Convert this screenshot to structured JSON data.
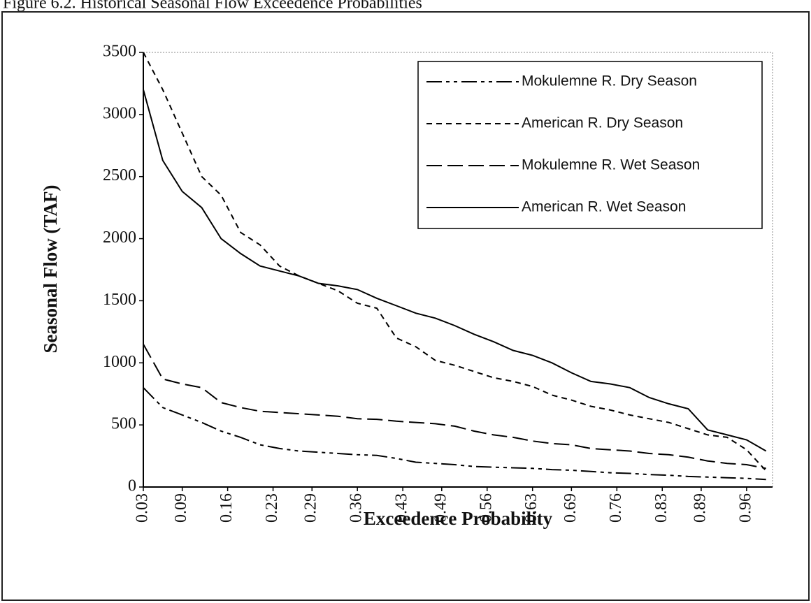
{
  "chart_data": {
    "type": "line",
    "title": "Figure 6.2. Historical Seasonal Flow Exceedence Probabilities",
    "x_label": "Exceedence Probability",
    "y_label": "Seasonal Flow (TAF)",
    "x": [
      0.03,
      0.06,
      0.09,
      0.12,
      0.15,
      0.18,
      0.21,
      0.24,
      0.27,
      0.3,
      0.33,
      0.36,
      0.39,
      0.42,
      0.45,
      0.48,
      0.51,
      0.54,
      0.57,
      0.6,
      0.63,
      0.66,
      0.69,
      0.72,
      0.75,
      0.78,
      0.81,
      0.84,
      0.87,
      0.9,
      0.93,
      0.96,
      0.99
    ],
    "series": [
      {
        "name": "Mokulemne R. Dry Season",
        "color": "#000000",
        "dash": "22 6 5 6 5 6",
        "values": [
          800,
          640,
          580,
          520,
          450,
          400,
          340,
          310,
          290,
          280,
          270,
          260,
          255,
          230,
          200,
          190,
          180,
          165,
          160,
          155,
          150,
          140,
          135,
          125,
          115,
          110,
          100,
          95,
          85,
          80,
          75,
          70,
          60
        ]
      },
      {
        "name": "American R. Dry Season",
        "color": "#000000",
        "dash": "8 6",
        "values": [
          3500,
          3200,
          2850,
          2500,
          2350,
          2050,
          1950,
          1780,
          1700,
          1640,
          1580,
          1480,
          1440,
          1200,
          1130,
          1020,
          980,
          930,
          880,
          850,
          810,
          740,
          700,
          650,
          620,
          580,
          550,
          520,
          470,
          420,
          400,
          300,
          130
        ]
      },
      {
        "name": "Mokulemne R. Wet Season",
        "color": "#000000",
        "dash": "22 8",
        "values": [
          1150,
          870,
          830,
          800,
          680,
          640,
          610,
          600,
          590,
          580,
          570,
          550,
          545,
          530,
          520,
          510,
          490,
          450,
          420,
          400,
          370,
          350,
          340,
          310,
          300,
          290,
          270,
          260,
          240,
          210,
          190,
          180,
          150
        ]
      },
      {
        "name": "American R. Wet Season",
        "color": "#000000",
        "dash": "none",
        "values": [
          3200,
          2630,
          2380,
          2250,
          2000,
          1880,
          1780,
          1740,
          1700,
          1640,
          1620,
          1590,
          1520,
          1460,
          1400,
          1360,
          1300,
          1230,
          1170,
          1100,
          1060,
          1000,
          920,
          850,
          830,
          800,
          720,
          670,
          630,
          460,
          420,
          380,
          290
        ]
      }
    ],
    "xlim": [
      0.03,
      1.0
    ],
    "xticks": [
      0.03,
      0.09,
      0.16,
      0.23,
      0.29,
      0.36,
      0.43,
      0.49,
      0.56,
      0.63,
      0.69,
      0.76,
      0.83,
      0.89,
      0.96
    ],
    "ylim": [
      0,
      3500
    ],
    "yticks": [
      0,
      500,
      1000,
      1500,
      2000,
      2500,
      3000,
      3500
    ],
    "legend": "top-right"
  }
}
